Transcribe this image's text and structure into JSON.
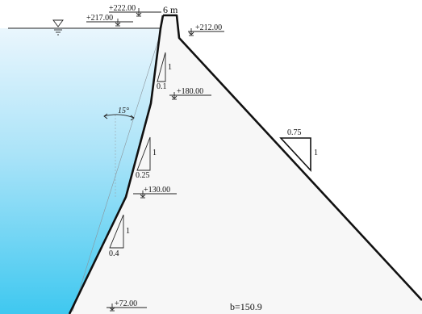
{
  "diagram": {
    "crest_width_label": "6 m",
    "base_width_label": "b=150.9",
    "angle_label": "15°",
    "elevations": {
      "crest": "+222.00",
      "upstream_water": "+217.00",
      "downstream_break": "+212.00",
      "upstream_break_1": "+180.00",
      "upstream_break_2": "+130.00",
      "base": "+72.00"
    },
    "slopes": {
      "upper": {
        "vertical": "1",
        "horizontal": "0.1"
      },
      "middle": {
        "vertical": "1",
        "horizontal": "0.25"
      },
      "lower": {
        "vertical": "1",
        "horizontal": "0.4"
      },
      "downstream": {
        "vertical": "1",
        "horizontal": "0.75"
      }
    },
    "colors": {
      "water_top": "#eaf6fd",
      "water_bottom": "#3fc8f0",
      "dam_body": "#f7f7f7",
      "outline": "#111111"
    },
    "icons": {
      "water_level": "water-level-triangle-icon",
      "elevation_marker": "elevation-arrow-icon"
    }
  }
}
